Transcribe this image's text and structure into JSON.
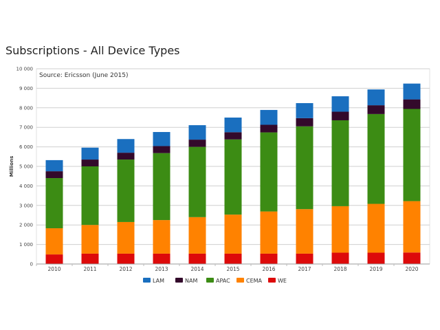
{
  "chart_data": {
    "type": "bar",
    "stacked": true,
    "title": "Subscriptions - All Device Types",
    "subtitle": "Source: Ericsson (June 2015)",
    "xlabel": "",
    "ylabel": "Millions",
    "ylim": [
      0,
      10000
    ],
    "yticks": [
      0,
      1000,
      2000,
      3000,
      4000,
      5000,
      6000,
      7000,
      8000,
      9000,
      10000
    ],
    "ytick_labels": [
      "0",
      "1 000",
      "2 000",
      "3 000",
      "4 000",
      "5 000",
      "6 000",
      "7 000",
      "8 000",
      "9 000",
      "10 000"
    ],
    "grid": true,
    "legend_position": "bottom-center",
    "categories": [
      "2010",
      "2011",
      "2012",
      "2013",
      "2014",
      "2015",
      "2016",
      "2017",
      "2018",
      "2019",
      "2020"
    ],
    "series": [
      {
        "name": "WE",
        "color": "#dd0a0a",
        "values": [
          490,
          530,
          530,
          530,
          530,
          530,
          530,
          530,
          580,
          580,
          590
        ]
      },
      {
        "name": "CEMA",
        "color": "#ff8200",
        "values": [
          1340,
          1470,
          1620,
          1720,
          1870,
          2000,
          2160,
          2280,
          2380,
          2500,
          2630
        ]
      },
      {
        "name": "APAC",
        "color": "#3c8c14",
        "values": [
          2570,
          3000,
          3200,
          3430,
          3600,
          3850,
          4050,
          4240,
          4400,
          4600,
          4720
        ]
      },
      {
        "name": "NAM",
        "color": "#33092b",
        "values": [
          350,
          350,
          350,
          360,
          370,
          370,
          390,
          420,
          440,
          450,
          490
        ]
      },
      {
        "name": "LAM",
        "color": "#1a6fbf",
        "values": [
          570,
          610,
          700,
          720,
          740,
          750,
          760,
          770,
          790,
          810,
          810
        ]
      }
    ],
    "legend_order": [
      "LAM",
      "NAM",
      "APAC",
      "CEMA",
      "WE"
    ]
  }
}
